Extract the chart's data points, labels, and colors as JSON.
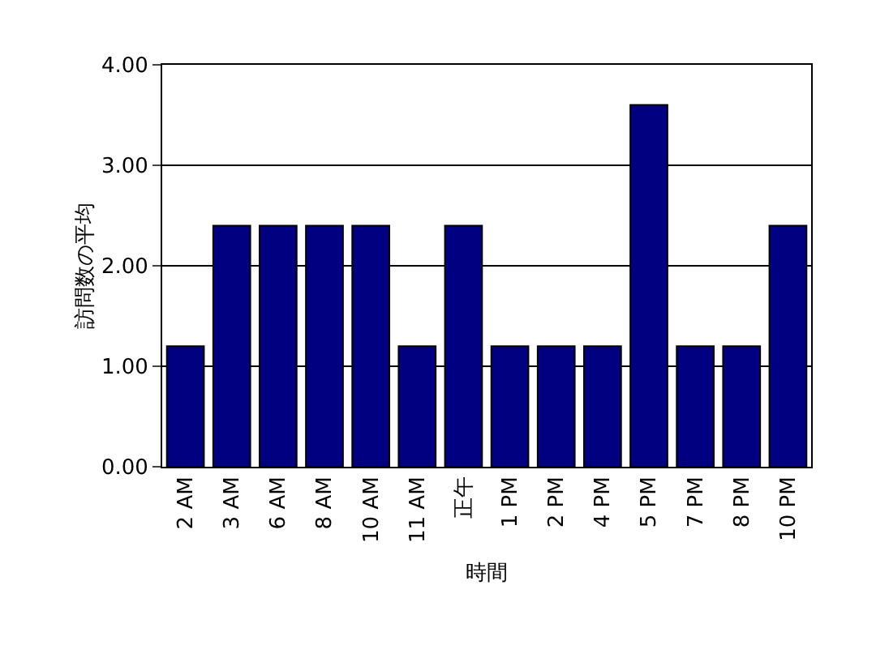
{
  "chart_data": {
    "type": "bar",
    "xlabel": "時間",
    "ylabel": "訪問数の平均",
    "categories": [
      "2 AM",
      "3 AM",
      "6 AM",
      "8 AM",
      "10 AM",
      "11 AM",
      "正午",
      "1 PM",
      "2 PM",
      "4 PM",
      "5 PM",
      "7 PM",
      "8 PM",
      "10 PM"
    ],
    "values": [
      1.2,
      2.4,
      2.4,
      2.4,
      2.4,
      1.2,
      2.4,
      1.2,
      1.2,
      1.2,
      3.6,
      1.2,
      1.2,
      2.4
    ],
    "color": "#000080",
    "ylim": [
      0,
      4
    ],
    "yticks": [
      {
        "value": 0,
        "label": "0.00"
      },
      {
        "value": 1,
        "label": "1.00"
      },
      {
        "value": 2,
        "label": "2.00"
      },
      {
        "value": 3,
        "label": "3.00"
      },
      {
        "value": 4,
        "label": "4.00"
      }
    ],
    "grid": "y"
  }
}
